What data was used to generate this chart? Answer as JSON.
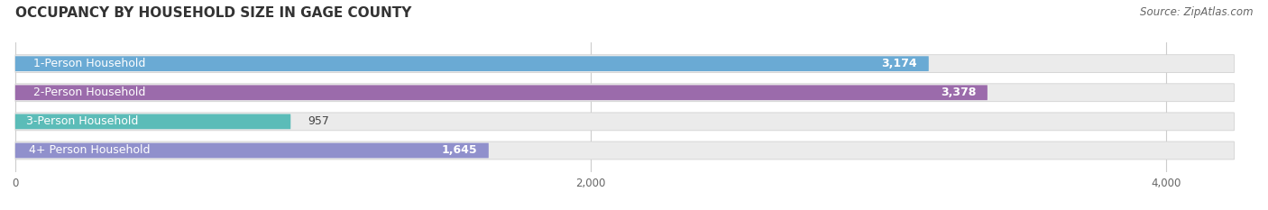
{
  "title": "OCCUPANCY BY HOUSEHOLD SIZE IN GAGE COUNTY",
  "source": "Source: ZipAtlas.com",
  "categories": [
    "1-Person Household",
    "2-Person Household",
    "3-Person Household",
    "4+ Person Household"
  ],
  "values": [
    3174,
    3378,
    957,
    1645
  ],
  "bar_colors": [
    "#6aaad4",
    "#9b6bab",
    "#5bbcb8",
    "#9090cc"
  ],
  "value_text_colors": [
    "white",
    "white",
    "#555555",
    "#555555"
  ],
  "xlim": [
    0,
    4300
  ],
  "xticks": [
    0,
    2000,
    4000
  ],
  "background_color": "#ffffff",
  "bar_background_color": "#ebebeb",
  "bar_height": 0.62,
  "label_fontsize": 9.0,
  "value_fontsize": 9.0,
  "title_fontsize": 11,
  "source_fontsize": 8.5,
  "bar_gap": 1.0
}
